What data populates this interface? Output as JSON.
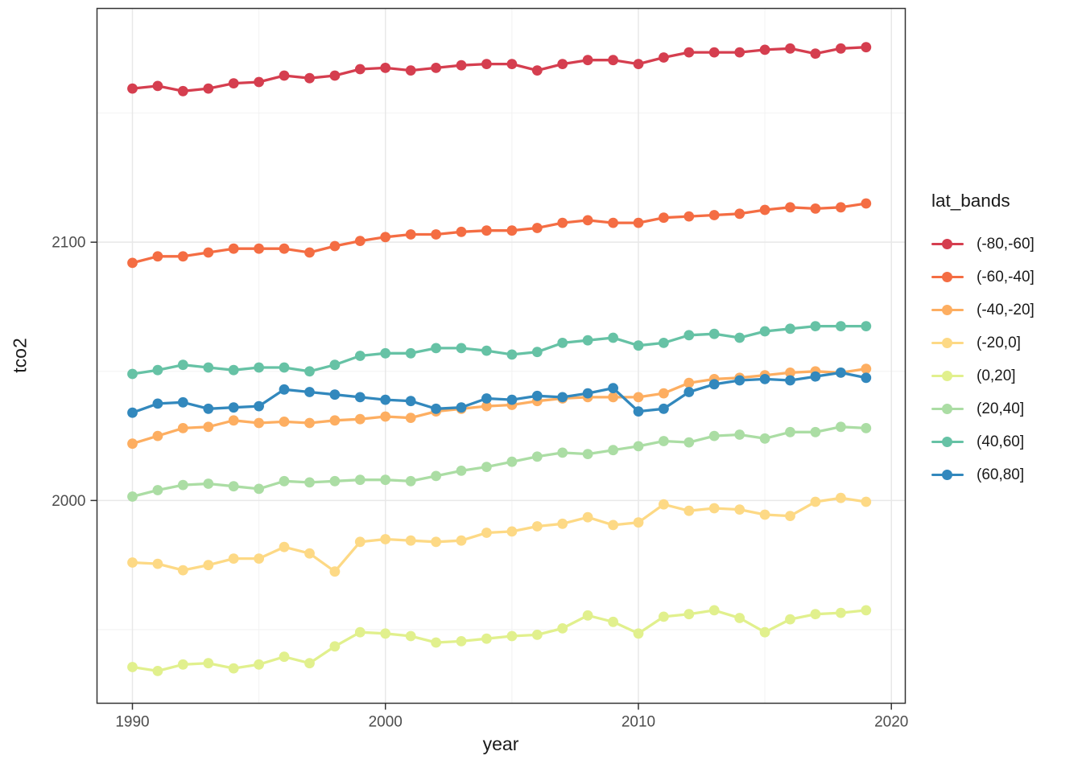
{
  "chart_data": {
    "type": "line",
    "markers": true,
    "xlabel": "year",
    "ylabel": "tco2",
    "legend_title": "lat_bands",
    "legend_position": "right",
    "grid": true,
    "x_ticks": [
      1990,
      2000,
      2010,
      2020
    ],
    "y_ticks": [
      2000,
      2100
    ],
    "x_minor": [
      1995,
      2005,
      2015
    ],
    "y_minor": [
      1950,
      2050,
      2150
    ],
    "xlim": [
      1988.6,
      2020.55
    ],
    "ylim": [
      1921.5,
      2190.5
    ],
    "x": [
      1990,
      1991,
      1992,
      1993,
      1994,
      1995,
      1996,
      1997,
      1998,
      1999,
      2000,
      2001,
      2002,
      2003,
      2004,
      2005,
      2006,
      2007,
      2008,
      2009,
      2010,
      2011,
      2012,
      2013,
      2014,
      2015,
      2016,
      2017,
      2018,
      2019
    ],
    "series": [
      {
        "name": "(-80,-60]",
        "color": "#d53e4f",
        "values": [
          2159.5,
          2160.5,
          2158.5,
          2159.5,
          2161.5,
          2162,
          2164.5,
          2163.5,
          2164.5,
          2167,
          2167.5,
          2166.5,
          2167.5,
          2168.5,
          2169,
          2169,
          2166.5,
          2169,
          2170.5,
          2170.5,
          2169,
          2171.5,
          2173.5,
          2173.5,
          2173.5,
          2174.5,
          2175,
          2173,
          2175,
          2175.5
        ]
      },
      {
        "name": "(-60,-40]",
        "color": "#f46d43",
        "values": [
          2092,
          2094.5,
          2094.5,
          2096,
          2097.5,
          2097.5,
          2097.5,
          2096,
          2098.5,
          2100.5,
          2102,
          2103,
          2103,
          2104,
          2104.5,
          2104.5,
          2105.5,
          2107.5,
          2108.5,
          2107.5,
          2107.5,
          2109.5,
          2110,
          2110.5,
          2111,
          2112.5,
          2113.5,
          2113,
          2113.5,
          2115
        ]
      },
      {
        "name": "(-40,-20]",
        "color": "#fdae61",
        "values": [
          2022,
          2025,
          2028,
          2028.5,
          2031,
          2030,
          2030.5,
          2030,
          2031,
          2031.5,
          2032.5,
          2032,
          2034.5,
          2035.5,
          2036.5,
          2037,
          2038.5,
          2039.5,
          2040,
          2040,
          2040,
          2041.5,
          2045.5,
          2047,
          2047.5,
          2048.5,
          2049.5,
          2050,
          2049.5,
          2051
        ]
      },
      {
        "name": "(-20,0]",
        "color": "#fdd985",
        "values": [
          1976,
          1975.5,
          1973,
          1975,
          1977.5,
          1977.5,
          1982,
          1979.5,
          1972.5,
          1984,
          1985,
          1984.5,
          1984,
          1984.5,
          1987.5,
          1988,
          1990,
          1991,
          1993.5,
          1990.5,
          1991.5,
          1998.5,
          1996,
          1997,
          1996.5,
          1994.5,
          1994,
          1999.5,
          2001,
          1999.5
        ]
      },
      {
        "name": "(0,20]",
        "color": "#e1f08d",
        "values": [
          1935.5,
          1934,
          1936.5,
          1937,
          1935,
          1936.5,
          1939.5,
          1937,
          1943.5,
          1949,
          1948.5,
          1947.5,
          1945,
          1945.5,
          1946.5,
          1947.5,
          1948,
          1950.5,
          1955.5,
          1953,
          1948.5,
          1955,
          1956,
          1957.5,
          1954.5,
          1949,
          1954,
          1956,
          1956.5,
          1957.5
        ]
      },
      {
        "name": "(20,40]",
        "color": "#abdda4",
        "values": [
          2001.5,
          2004,
          2006,
          2006.5,
          2005.5,
          2004.5,
          2007.5,
          2007,
          2007.5,
          2008,
          2008,
          2007.5,
          2009.5,
          2011.5,
          2013,
          2015,
          2017,
          2018.5,
          2018,
          2019.5,
          2021,
          2023,
          2022.5,
          2025,
          2025.5,
          2024,
          2026.5,
          2026.5,
          2028.5,
          2028
        ]
      },
      {
        "name": "(40,60]",
        "color": "#66c2a5",
        "values": [
          2049,
          2050.5,
          2052.5,
          2051.5,
          2050.5,
          2051.5,
          2051.5,
          2050,
          2052.5,
          2056,
          2057,
          2057,
          2059,
          2059,
          2058,
          2056.5,
          2057.5,
          2061,
          2062,
          2063,
          2060,
          2061,
          2064,
          2064.5,
          2063,
          2065.5,
          2066.5,
          2067.5,
          2067.5,
          2067.5
        ]
      },
      {
        "name": "(60,80]",
        "color": "#3288bd",
        "values": [
          2034,
          2037.5,
          2038,
          2035.5,
          2036,
          2036.5,
          2043,
          2042,
          2041,
          2040,
          2039,
          2038.5,
          2035.5,
          2036,
          2039.5,
          2039,
          2040.5,
          2040,
          2041.5,
          2043.5,
          2034.5,
          2035.5,
          2042,
          2045,
          2046.5,
          2047,
          2046.5,
          2048,
          2049.5,
          2047.5
        ]
      }
    ]
  }
}
